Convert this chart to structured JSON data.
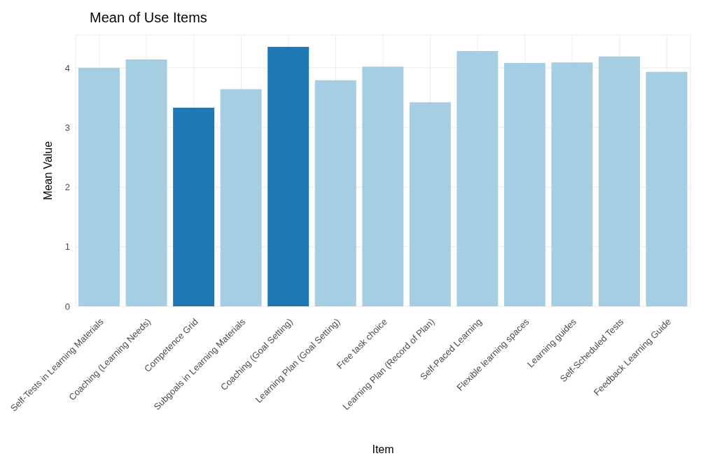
{
  "chart_data": {
    "type": "bar",
    "title": "Mean of Use Items",
    "xlabel": "Item",
    "ylabel": "Mean Value",
    "categories": [
      "Self-Tests in Learning Materials",
      "Coaching (Learning Needs)",
      "Competence Grid",
      "Subgoals in Learning Materials",
      "Coaching (Goal Setting)",
      "Learning Plan (Goal Setting)",
      "Free task choice",
      "Learning Plan (Record of Plan)",
      "Self-Paced Learning",
      "Flexible learning spaces",
      "Learning guides",
      "Self-Scheduled Tests",
      "Feedback Learning Guide"
    ],
    "values": [
      4.0,
      4.14,
      3.33,
      3.64,
      4.35,
      3.79,
      4.02,
      3.42,
      4.28,
      4.08,
      4.09,
      4.19,
      3.93
    ],
    "colors": [
      "#a6cee3",
      "#a6cee3",
      "#1f78b4",
      "#a6cee3",
      "#1f78b4",
      "#a6cee3",
      "#a6cee3",
      "#a6cee3",
      "#a6cee3",
      "#a6cee3",
      "#a6cee3",
      "#a6cee3",
      "#a6cee3"
    ],
    "ylim": [
      0,
      4.55
    ],
    "yticks": [
      0,
      1,
      2,
      3,
      4
    ],
    "grid": true
  }
}
